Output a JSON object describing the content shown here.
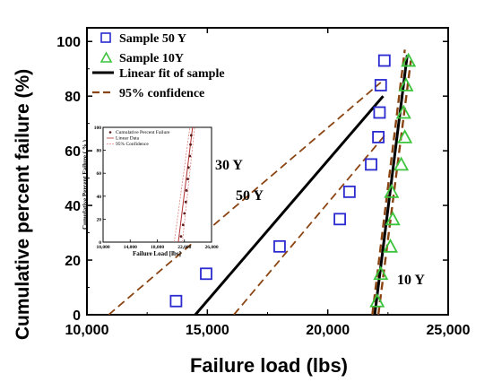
{
  "chart_data": {
    "type": "scatter",
    "xlabel": "Failure load (lbs)",
    "ylabel": "Cumulative percent failure (%)",
    "xlim": [
      10000,
      25000
    ],
    "ylim": [
      0,
      105
    ],
    "x_ticks": [
      "10,000",
      "15,000",
      "20,000",
      "25,000"
    ],
    "y_ticks": [
      "0",
      "20",
      "40",
      "60",
      "80",
      "100"
    ],
    "legend": {
      "placement": "top-left",
      "entries": [
        "Sample 50 Y",
        "Sample 10Y",
        "Linear fit of sample",
        "95% confidence"
      ]
    },
    "series": [
      {
        "name": "Sample 50 Y",
        "marker": "square",
        "color": "#2a2ad0",
        "points": [
          [
            13700,
            5
          ],
          [
            14950,
            15
          ],
          [
            18000,
            25
          ],
          [
            20500,
            35
          ],
          [
            20900,
            45
          ],
          [
            21800,
            55
          ],
          [
            22100,
            65
          ],
          [
            22150,
            74
          ],
          [
            22200,
            84
          ],
          [
            22350,
            93
          ]
        ]
      },
      {
        "name": "Sample 10Y",
        "marker": "triangle",
        "color": "#3cc43c",
        "points": [
          [
            22050,
            5
          ],
          [
            22200,
            15
          ],
          [
            22600,
            25
          ],
          [
            22700,
            35
          ],
          [
            22650,
            45
          ],
          [
            23050,
            55
          ],
          [
            23200,
            65
          ],
          [
            23150,
            74
          ],
          [
            23250,
            84
          ],
          [
            23350,
            93
          ]
        ]
      }
    ],
    "fit_lines": [
      {
        "name": "Linear fit of sample",
        "group": "50 Y",
        "style": "solid",
        "color": "#000000",
        "points": [
          [
            14500,
            0
          ],
          [
            22300,
            80
          ]
        ]
      },
      {
        "name": "Linear fit of sample",
        "group": "10Y",
        "style": "solid",
        "color": "#000000",
        "points": [
          [
            21950,
            0
          ],
          [
            23300,
            95
          ]
        ]
      }
    ],
    "confidence_lines": [
      {
        "name": "95% confidence",
        "group": "50 Y",
        "side": "upper",
        "style": "dashed",
        "color": "#8b4513",
        "points": [
          [
            10900,
            0
          ],
          [
            22200,
            85
          ]
        ]
      },
      {
        "name": "95% confidence",
        "group": "50 Y",
        "side": "lower",
        "style": "dashed",
        "color": "#8b4513",
        "points": [
          [
            16100,
            0
          ],
          [
            22400,
            66
          ]
        ]
      },
      {
        "name": "95% confidence",
        "group": "10Y",
        "side": "upper",
        "style": "dashed",
        "color": "#8b4513",
        "points": [
          [
            21850,
            0
          ],
          [
            23200,
            97
          ]
        ]
      },
      {
        "name": "95% confidence",
        "group": "10Y",
        "side": "lower",
        "style": "dashed",
        "color": "#8b4513",
        "points": [
          [
            22100,
            0
          ],
          [
            23450,
            93
          ]
        ]
      }
    ],
    "annotations": [
      {
        "text": "30 Y",
        "x": 22000,
        "y": 63
      },
      {
        "text": "50 Y",
        "x": 19200,
        "y": 47
      },
      {
        "text": "10 Y",
        "x": 23100,
        "y": 11
      }
    ],
    "inset": {
      "ylabel": "Cumulative Percent Failure ( % )",
      "xlabel": "Failure Load [lbs]",
      "xlim": [
        10000,
        26000
      ],
      "ylim": [
        0,
        100
      ],
      "x_ticks": [
        "10,000",
        "14,000",
        "18,000",
        "22,000",
        "26,000"
      ],
      "y_ticks": [
        "0",
        "20",
        "40",
        "60",
        "80",
        "100"
      ],
      "legend": [
        "Cumulative Percent Failure",
        "Linear Data",
        "95% Confidence"
      ],
      "points": [
        [
          21500,
          5
        ],
        [
          21800,
          15
        ],
        [
          22000,
          25
        ],
        [
          22200,
          35
        ],
        [
          22300,
          45
        ],
        [
          22500,
          55
        ],
        [
          22600,
          65
        ],
        [
          22800,
          75
        ],
        [
          22900,
          85
        ],
        [
          23000,
          93
        ]
      ],
      "fit": [
        [
          21100,
          0
        ],
        [
          23200,
          100
        ]
      ],
      "ci_upper": [
        [
          20500,
          0
        ],
        [
          22800,
          100
        ]
      ],
      "ci_lower": [
        [
          21700,
          0
        ],
        [
          23500,
          100
        ]
      ]
    }
  },
  "colors": {
    "square": "#2a2ad0",
    "triangle": "#3cc43c",
    "fit": "#000000",
    "confidence": "#8b4513",
    "inset_points": "#5a1a1a",
    "inset_fit": "#b03030",
    "inset_ci": "#e08080"
  }
}
